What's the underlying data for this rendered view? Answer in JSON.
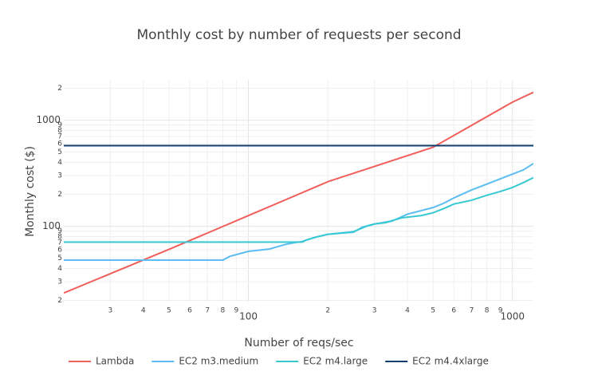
{
  "chart_data": {
    "type": "line",
    "title": "Monthly cost by number of requests per second",
    "x_label": "Number of reqs/sec",
    "y_label": "Monthly cost ($)",
    "x_scale": "log",
    "y_scale": "log",
    "grid": true,
    "legend": "bottom",
    "xlim": [
      20,
      1200
    ],
    "ylim": [
      19.5,
      2400
    ],
    "xticks": [
      {
        "value": 30,
        "label": "3"
      },
      {
        "value": 40,
        "label": "4"
      },
      {
        "value": 50,
        "label": "5"
      },
      {
        "value": 60,
        "label": "6"
      },
      {
        "value": 70,
        "label": "7"
      },
      {
        "value": 80,
        "label": "8"
      },
      {
        "value": 90,
        "label": "9"
      },
      100,
      {
        "value": 200,
        "label": "2"
      },
      {
        "value": 300,
        "label": "3"
      },
      {
        "value": 400,
        "label": "4"
      },
      {
        "value": 500,
        "label": "5"
      },
      {
        "value": 600,
        "label": "6"
      },
      {
        "value": 700,
        "label": "7"
      },
      {
        "value": 800,
        "label": "8"
      },
      {
        "value": 900,
        "label": "9"
      },
      1000
    ],
    "yticks": [
      {
        "value": 20,
        "label": "2"
      },
      {
        "value": 30,
        "label": "3"
      },
      {
        "value": 40,
        "label": "4"
      },
      {
        "value": 50,
        "label": "5"
      },
      {
        "value": 60,
        "label": "6"
      },
      {
        "value": 70,
        "label": "7"
      },
      {
        "value": 80,
        "label": "8"
      },
      {
        "value": 90,
        "label": "9"
      },
      100,
      {
        "value": 200,
        "label": "2"
      },
      {
        "value": 300,
        "label": "3"
      },
      {
        "value": 400,
        "label": "4"
      },
      {
        "value": 500,
        "label": "5"
      },
      {
        "value": 600,
        "label": "6"
      },
      {
        "value": 700,
        "label": "7"
      },
      {
        "value": 800,
        "label": "8"
      },
      {
        "value": 900,
        "label": "9"
      },
      1000,
      {
        "value": 2000,
        "label": "2"
      }
    ],
    "series": [
      {
        "name": "Lambda",
        "color": "#ef5f5b",
        "x": [
          20,
          50,
          100,
          200,
          500,
          1000,
          1200
        ],
        "values": [
          23.5,
          60.5,
          126,
          263,
          555,
          1479,
          1830
        ]
      },
      {
        "name": "EC2 m3.medium",
        "color": "#5bbdf2",
        "x": [
          20,
          80,
          85,
          100,
          120,
          140,
          160,
          180,
          200,
          250,
          270,
          300,
          350,
          400,
          500,
          550,
          600,
          700,
          800,
          900,
          1000,
          1100,
          1200
        ],
        "values": [
          48,
          48,
          52,
          58,
          61,
          68,
          72,
          79,
          84,
          88,
          98,
          105,
          112,
          130,
          150,
          165,
          185,
          220,
          250,
          280,
          310,
          340,
          390
        ]
      },
      {
        "name": "EC2 m4.large",
        "color": "#36c9d1",
        "x": [
          20,
          160,
          165,
          180,
          200,
          240,
          250,
          280,
          300,
          330,
          380,
          450,
          500,
          550,
          600,
          700,
          800,
          900,
          1000,
          1100,
          1200
        ],
        "values": [
          71,
          71,
          74,
          79,
          84,
          88,
          89,
          100,
          105,
          108,
          120,
          126,
          134,
          147,
          162,
          176,
          196,
          213,
          232,
          258,
          287
        ]
      },
      {
        "name": "EC2 m4.4xlarge",
        "color": "#0e3d6e",
        "x": [
          20,
          1200
        ],
        "values": [
          575,
          575
        ]
      }
    ]
  }
}
